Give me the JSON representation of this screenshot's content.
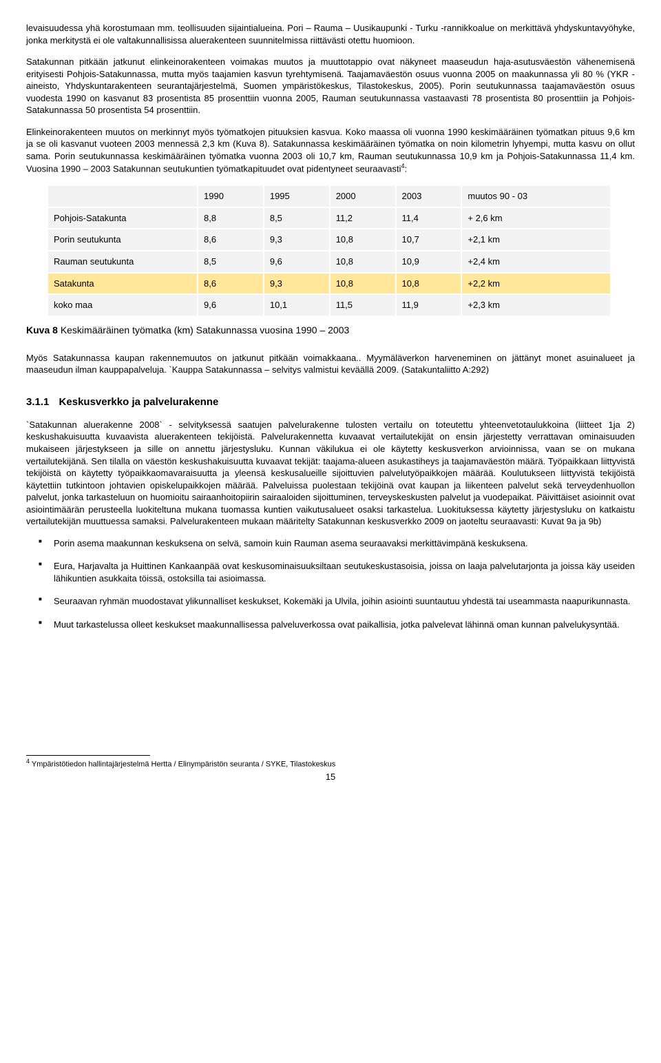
{
  "paragraphs": {
    "p1": "levaisuudessa yhä korostumaan mm. teollisuuden sijaintialueina. Pori – Rauma – Uusikaupunki - Turku -rannikkoalue on merkittävä yhdyskuntavyöhyke, jonka merkitystä ei ole valtakunnallisissa aluerakenteen suunnitelmissa riittävästi otettu huomioon.",
    "p2": "Satakunnan pitkään jatkunut elinkeinorakenteen voimakas muutos ja muuttotappio ovat näkyneet maaseudun haja-asutusväestön vähenemisenä erityisesti Pohjois-Satakunnassa, mutta myös taajamien kasvun tyrehtymisenä. Taajamaväestön osuus vuonna 2005 on maakunnassa yli 80 % (YKR - aineisto, Yhdyskuntarakenteen seurantajärjestelmä, Suomen ympäristökeskus, Tilastokeskus, 2005). Porin seutukunnassa taajamaväestön osuus vuodesta 1990 on kasvanut 83 prosentista 85 prosenttiin vuonna 2005, Rauman seutukunnassa vastaavasti 78 prosentista 80 prosenttiin ja Pohjois-Satakunnassa 50 prosentista 54 prosenttiin.",
    "p3a": "Elinkeinorakenteen muutos on merkinnyt myös työmatkojen pituuksien kasvua. Koko maassa oli vuonna 1990 keskimääräinen työmatkan pituus 9,6 km ja se oli kasvanut vuoteen 2003 mennessä 2,3 km (Kuva 8). Satakunnassa keskimääräinen työmatka on noin kilometrin lyhyempi, mutta kasvu on ollut sama. Porin seutukunnassa keskimääräinen työmatka vuonna 2003 oli 10,7 km, Rauman seutukunnassa 10,9 km ja Pohjois-Satakunnassa 11,4 km. Vuosina 1990 – 2003 Satakunnan seutukuntien työmatkapituudet ovat pidentyneet seuraavasti",
    "p3b": ":",
    "p4": "Myös Satakunnassa kaupan rakennemuutos on jatkunut pitkään voimakkaana.. Myymäläverkon harveneminen on jättänyt monet asuinalueet ja maaseudun ilman kauppapalveluja. `Kauppa Satakunnassa – selvitys valmistui keväällä 2009. (Satakuntaliitto A:292)",
    "p5": "`Satakunnan aluerakenne 2008` - selvityksessä saatujen palvelurakenne tulosten vertailu on toteutettu yhteenvetotaulukkoina (liitteet 1ja 2) keskushakuisuutta kuvaavista aluerakenteen tekijöistä. Palvelurakennetta kuvaavat vertailutekijät on ensin järjestetty verrattavan ominaisuuden mukaiseen järjestykseen ja sille on annettu järjestysluku. Kunnan väkilukua ei ole käytetty keskusverkon arvioinnissa, vaan se on mukana vertailutekijänä. Sen tilalla on väestön keskushakuisuutta kuvaavat tekijät: taajama-alueen asukastiheys ja taajamaväestön määrä. Työpaikkaan liittyvistä tekijöistä on käytetty työpaikkaomavaraisuutta ja yleensä keskusalueille sijoittuvien palvelutyöpaikkojen määrää. Koulutukseen liittyvistä tekijöistä käytettiin tutkintoon johtavien opiskelupaikkojen määrää. Palveluissa puolestaan tekijöinä ovat kaupan ja liikenteen palvelut sekä terveydenhuollon palvelut, jonka tarkasteluun on huomioitu sairaanhoitopiirin sairaaloiden sijoittuminen, terveyskeskusten palvelut ja vuodepaikat. Päivittäiset asioinnit ovat asiointimäärän perusteella luokiteltuna mukana tuomassa kuntien vaikutusalueet osaksi tarkastelua. Luokituksessa käytetty järjestysluku on katkaistu vertailutekijän muuttuessa samaksi. Palvelurakenteen mukaan määritelty Satakunnan keskusverkko 2009 on jaoteltu seuraavasti: Kuvat 9a ja 9b)"
  },
  "table": {
    "headers": [
      "",
      "1990",
      "1995",
      "2000",
      "2003",
      "muutos 90 - 03"
    ],
    "rows": [
      {
        "label": "Pohjois-Satakunta",
        "c1": "8,8",
        "c2": "8,5",
        "c3": "11,2",
        "c4": "11,4",
        "c5": "+ 2,6 km",
        "highlight": false
      },
      {
        "label": "Porin seutukunta",
        "c1": "8,6",
        "c2": "9,3",
        "c3": "10,8",
        "c4": "10,7",
        "c5": "+2,1 km",
        "highlight": false
      },
      {
        "label": "Rauman seutukunta",
        "c1": "8,5",
        "c2": "9,6",
        "c3": "10,8",
        "c4": "10,9",
        "c5": "+2,4 km",
        "highlight": false
      },
      {
        "label": "Satakunta",
        "c1": "8,6",
        "c2": "9,3",
        "c3": "10,8",
        "c4": "10,8",
        "c5": "+2,2 km",
        "highlight": true
      },
      {
        "label": "koko maa",
        "c1": "9,6",
        "c2": "10,1",
        "c3": "11,5",
        "c4": "11,9",
        "c5": "+2,3 km",
        "highlight": false
      }
    ],
    "highlight_color": "#ffe699",
    "cell_bg": "#f2f2f2"
  },
  "caption": {
    "label": "Kuva 8",
    "text": "Keskimääräinen työmatka (km) Satakunnassa vuosina 1990 – 2003"
  },
  "section": {
    "number": "3.1.1",
    "title": "Keskusverkko ja palvelurakenne"
  },
  "bullets": [
    "Porin asema maakunnan keskuksena on selvä, samoin kuin Rauman asema seuraavaksi merkittävimpänä keskuksena.",
    "Eura, Harjavalta ja Huittinen Kankaanpää ovat keskusominaisuuksiltaan seutukeskustasoisia, joissa on laaja palvelutarjonta ja joissa käy useiden lähikuntien asukkaita töissä, ostoksilla tai asioimassa.",
    "Seuraavan ryhmän muodostavat ylikunnalliset keskukset, Kokemäki ja Ulvila, joihin asiointi suuntautuu yhdestä tai useammasta naapurikunnasta.",
    "Muut tarkastelussa olleet keskukset maakunnallisessa palveluverkossa ovat paikallisia, jotka palvelevat lähinnä oman kunnan palvelukysyntää."
  ],
  "footnote": {
    "marker": "4",
    "text": "Ympäristötiedon hallintajärjestelmä Hertta / Elinympäristön seuranta / SYKE, Tilastokeskus"
  },
  "pagenum": "15"
}
